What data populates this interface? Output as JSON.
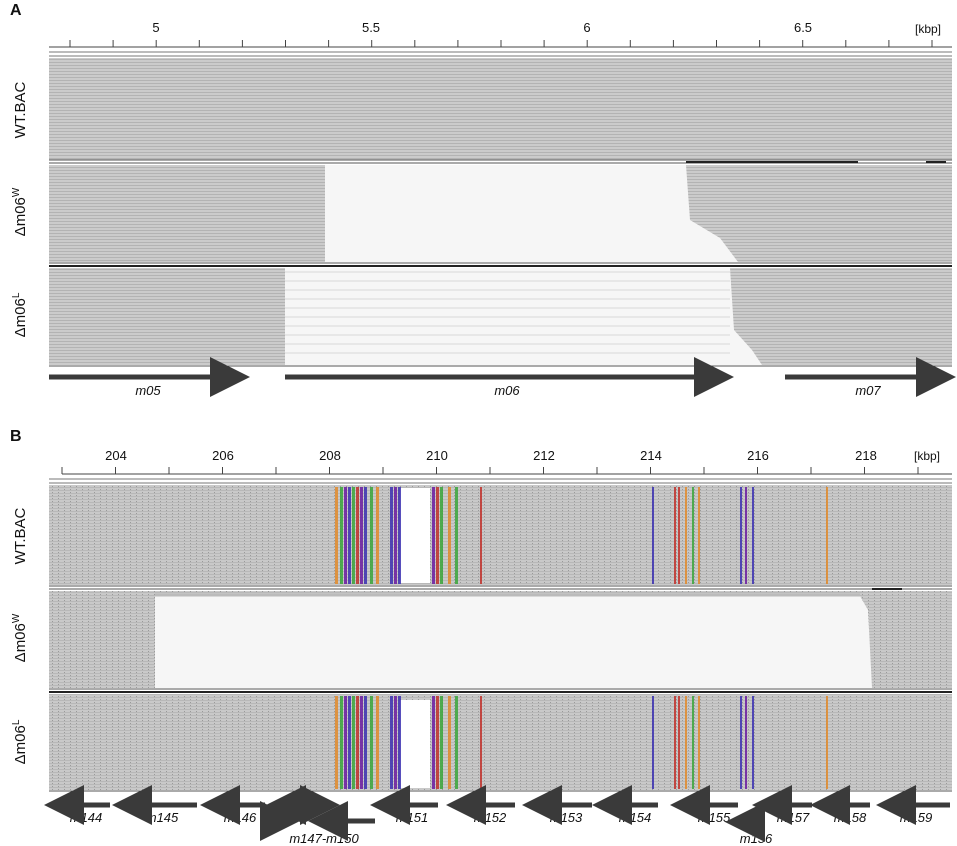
{
  "panelA": {
    "label": "A",
    "unit": "[kbp]",
    "ticks": [
      "5",
      "5.5",
      "6",
      "6.5"
    ],
    "tracks": [
      "WT.BAC",
      "Δm06W",
      "Δm06L"
    ],
    "track_parts": [
      {
        "main": "WT.BAC",
        "sup": ""
      },
      {
        "main": "Δm06",
        "sup": "W"
      },
      {
        "main": "Δm06",
        "sup": "L"
      }
    ],
    "genes": [
      "m05",
      "m06",
      "m07"
    ]
  },
  "panelB": {
    "label": "B",
    "unit": "[kbp]",
    "ticks": [
      "204",
      "206",
      "208",
      "210",
      "212",
      "214",
      "216",
      "218"
    ],
    "track_parts": [
      {
        "main": "WT.BAC",
        "sup": ""
      },
      {
        "main": "Δm06",
        "sup": "W"
      },
      {
        "main": "Δm06",
        "sup": "L"
      }
    ],
    "genes": [
      "m144",
      "m145",
      "m146",
      "m147-m150",
      "m151",
      "m152",
      "m153",
      "m154",
      "m155",
      "m156",
      "m157",
      "m158",
      "m159"
    ]
  },
  "colors": {
    "read_gray": "#c4c4c4",
    "read_dark": "#9a9a9a",
    "deletion": "#f6f6f6",
    "arrow": "#3a3a3a",
    "mismatch_blue": "#3a2fb0",
    "mismatch_red": "#c0302a",
    "mismatch_green": "#3aa53a",
    "mismatch_orange": "#e08a2a",
    "mismatch_purple": "#6a1aa0"
  }
}
